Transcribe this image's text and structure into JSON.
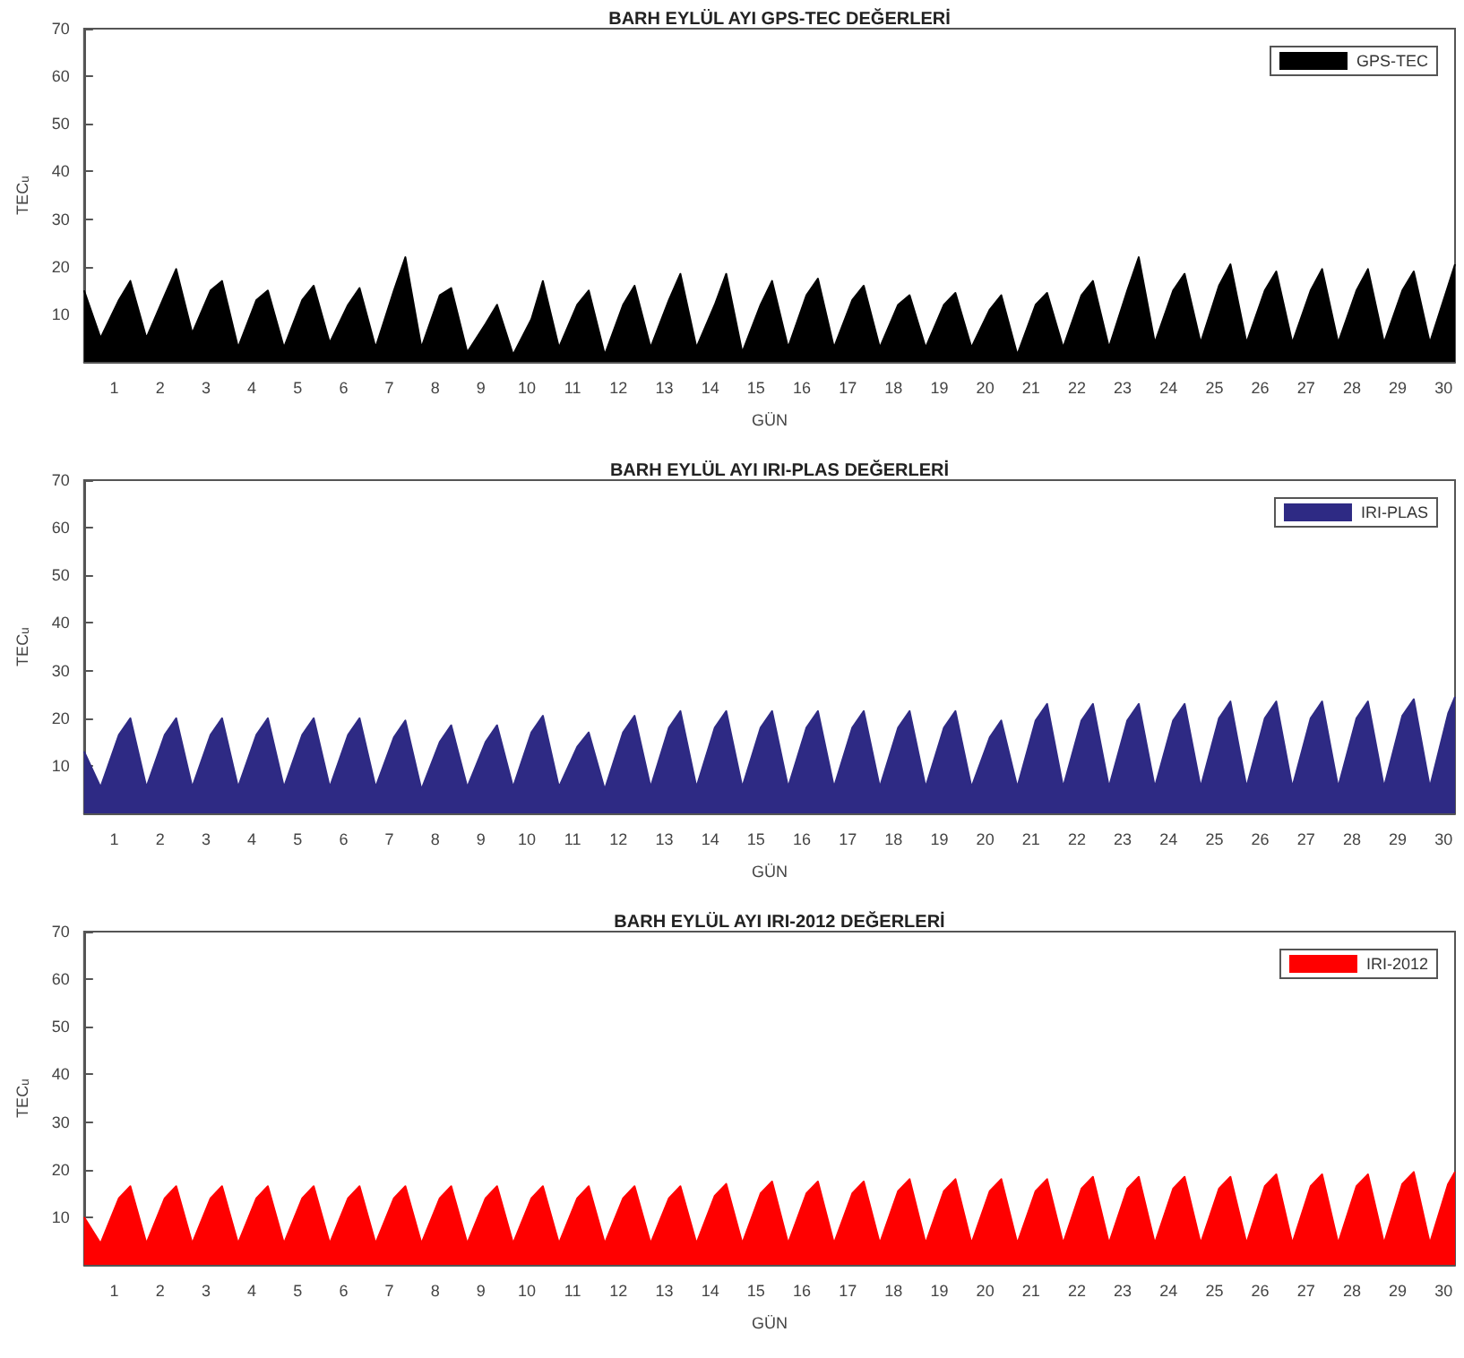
{
  "chart_data": [
    {
      "type": "area",
      "title": "BARH EYLÜL AYI GPS-TEC DEĞERLERİ",
      "xlabel": "GÜN",
      "ylabel": "TEC$_{u}$",
      "legend": "top right",
      "grid": false,
      "marker": "none",
      "xlim": [
        0.34,
        30.25
      ],
      "xticks": [
        1,
        2,
        3,
        4,
        5,
        6,
        7,
        8,
        9,
        10,
        11,
        12,
        13,
        14,
        15,
        16,
        17,
        18,
        19,
        20,
        21,
        22,
        23,
        24,
        25,
        26,
        27,
        28,
        29,
        30
      ],
      "ylim": [
        0,
        70
      ],
      "yticks": [
        10,
        20,
        30,
        40,
        50,
        60,
        70
      ],
      "x": [
        0.34,
        0.7,
        1.1,
        1.35,
        1.7,
        2.1,
        2.35,
        2.7,
        3.1,
        3.35,
        3.7,
        4.1,
        4.35,
        4.7,
        5.1,
        5.35,
        5.7,
        6.1,
        6.35,
        6.7,
        7.1,
        7.35,
        7.7,
        8.1,
        8.35,
        8.7,
        9.1,
        9.35,
        9.7,
        10.1,
        10.35,
        10.7,
        11.1,
        11.35,
        11.7,
        12.1,
        12.35,
        12.7,
        13.1,
        13.35,
        13.7,
        14.1,
        14.35,
        14.7,
        15.1,
        15.35,
        15.7,
        16.1,
        16.35,
        16.7,
        17.1,
        17.35,
        17.7,
        18.1,
        18.35,
        18.7,
        19.1,
        19.35,
        19.7,
        20.1,
        20.35,
        20.7,
        21.1,
        21.35,
        21.7,
        22.1,
        22.35,
        22.7,
        23.1,
        23.35,
        23.7,
        24.1,
        24.35,
        24.7,
        25.1,
        25.35,
        25.7,
        26.1,
        26.35,
        26.7,
        27.1,
        27.35,
        27.7,
        28.1,
        28.35,
        28.7,
        29.1,
        29.35,
        29.7,
        30.1,
        30.25
      ],
      "series": [
        {
          "name": "GPS-TEC",
          "color": "#000000",
          "values": [
            15,
            5,
            13,
            17,
            5,
            14,
            19.5,
            6,
            15,
            17,
            3,
            13,
            15,
            3,
            13,
            16,
            4,
            12,
            15.5,
            3,
            15,
            22,
            3,
            14,
            15.5,
            2,
            8,
            12,
            1.5,
            9,
            17,
            3,
            12,
            15,
            1.5,
            12,
            16,
            3,
            13,
            18.5,
            3,
            12,
            18.5,
            2,
            12,
            17,
            3,
            14,
            17.5,
            3,
            13,
            16,
            3,
            12,
            14,
            3,
            12,
            14.5,
            3,
            11,
            14,
            1.5,
            12,
            14.5,
            3,
            14,
            17,
            3,
            15,
            22,
            4,
            15,
            18.5,
            4,
            16,
            20.5,
            4,
            15,
            19,
            4,
            15,
            19.5,
            4,
            15,
            19.5,
            4,
            15,
            19,
            4,
            16,
            20.5
          ]
        }
      ]
    },
    {
      "type": "area",
      "title": "BARH EYLÜL AYI IRI-PLAS DEĞERLERİ",
      "xlabel": "GÜN",
      "ylabel": "TEC$_{u}$",
      "legend": "top right",
      "grid": false,
      "marker": "none",
      "xlim": [
        0.34,
        30.25
      ],
      "xticks": [
        1,
        2,
        3,
        4,
        5,
        6,
        7,
        8,
        9,
        10,
        11,
        12,
        13,
        14,
        15,
        16,
        17,
        18,
        19,
        20,
        21,
        22,
        23,
        24,
        25,
        26,
        27,
        28,
        29,
        30
      ],
      "ylim": [
        0,
        70
      ],
      "yticks": [
        10,
        20,
        30,
        40,
        50,
        60,
        70
      ],
      "x": [
        0.34,
        0.7,
        1.1,
        1.35,
        1.7,
        2.1,
        2.35,
        2.7,
        3.1,
        3.35,
        3.7,
        4.1,
        4.35,
        4.7,
        5.1,
        5.35,
        5.7,
        6.1,
        6.35,
        6.7,
        7.1,
        7.35,
        7.7,
        8.1,
        8.35,
        8.7,
        9.1,
        9.35,
        9.7,
        10.1,
        10.35,
        10.7,
        11.1,
        11.35,
        11.7,
        12.1,
        12.35,
        12.7,
        13.1,
        13.35,
        13.7,
        14.1,
        14.35,
        14.7,
        15.1,
        15.35,
        15.7,
        16.1,
        16.35,
        16.7,
        17.1,
        17.35,
        17.7,
        18.1,
        18.35,
        18.7,
        19.1,
        19.35,
        19.7,
        20.1,
        20.35,
        20.7,
        21.1,
        21.35,
        21.7,
        22.1,
        22.35,
        22.7,
        23.1,
        23.35,
        23.7,
        24.1,
        24.35,
        24.7,
        25.1,
        25.35,
        25.7,
        26.1,
        26.35,
        26.7,
        27.1,
        27.35,
        27.7,
        28.1,
        28.35,
        28.7,
        29.1,
        29.35,
        29.7,
        30.1,
        30.25
      ],
      "series": [
        {
          "name": "IRI-PLAS",
          "color": "#2e2a84",
          "values": [
            13,
            5.5,
            16.5,
            20,
            5.5,
            16.5,
            20,
            5.5,
            16.5,
            20,
            5.5,
            16.5,
            20,
            5.5,
            16.5,
            20,
            5.5,
            16.5,
            20,
            5.5,
            16,
            19.5,
            5,
            15,
            18.5,
            5.5,
            15,
            18.5,
            5.5,
            17,
            20.5,
            5.5,
            14,
            17,
            5,
            17,
            20.5,
            5.5,
            18,
            21.5,
            5.5,
            18,
            21.5,
            5.5,
            18,
            21.5,
            5.5,
            18,
            21.5,
            5.5,
            18,
            21.5,
            5.5,
            18,
            21.5,
            5.5,
            18,
            21.5,
            5.5,
            16,
            19.5,
            5.5,
            19.5,
            23,
            5.5,
            19.5,
            23,
            5.5,
            19.5,
            23,
            5.5,
            19.5,
            23,
            5.5,
            20,
            23.5,
            5.5,
            20,
            23.5,
            5.5,
            20,
            23.5,
            5.5,
            20,
            23.5,
            5.5,
            20.5,
            24,
            5.5,
            21,
            24.5
          ]
        }
      ]
    },
    {
      "type": "area",
      "title": "BARH EYLÜL AYI IRI-2012 DEĞERLERİ",
      "xlabel": "GÜN",
      "ylabel": "TEC$_{u}$",
      "legend": "top right",
      "grid": false,
      "marker": "none",
      "xlim": [
        0.34,
        30.25
      ],
      "xticks": [
        1,
        2,
        3,
        4,
        5,
        6,
        7,
        8,
        9,
        10,
        11,
        12,
        13,
        14,
        15,
        16,
        17,
        18,
        19,
        20,
        21,
        22,
        23,
        24,
        25,
        26,
        27,
        28,
        29,
        30
      ],
      "ylim": [
        0,
        70
      ],
      "yticks": [
        10,
        20,
        30,
        40,
        50,
        60,
        70
      ],
      "x": [
        0.34,
        0.7,
        1.1,
        1.35,
        1.7,
        2.1,
        2.35,
        2.7,
        3.1,
        3.35,
        3.7,
        4.1,
        4.35,
        4.7,
        5.1,
        5.35,
        5.7,
        6.1,
        6.35,
        6.7,
        7.1,
        7.35,
        7.7,
        8.1,
        8.35,
        8.7,
        9.1,
        9.35,
        9.7,
        10.1,
        10.35,
        10.7,
        11.1,
        11.35,
        11.7,
        12.1,
        12.35,
        12.7,
        13.1,
        13.35,
        13.7,
        14.1,
        14.35,
        14.7,
        15.1,
        15.35,
        15.7,
        16.1,
        16.35,
        16.7,
        17.1,
        17.35,
        17.7,
        18.1,
        18.35,
        18.7,
        19.1,
        19.35,
        19.7,
        20.1,
        20.35,
        20.7,
        21.1,
        21.35,
        21.7,
        22.1,
        22.35,
        22.7,
        23.1,
        23.35,
        23.7,
        24.1,
        24.35,
        24.7,
        25.1,
        25.35,
        25.7,
        26.1,
        26.35,
        26.7,
        27.1,
        27.35,
        27.7,
        28.1,
        28.35,
        28.7,
        29.1,
        29.35,
        29.7,
        30.1,
        30.25
      ],
      "series": [
        {
          "name": "IRI-2012",
          "color": "#ff0000",
          "values": [
            10,
            4.5,
            14,
            16.5,
            4.5,
            14,
            16.5,
            4.5,
            14,
            16.5,
            4.5,
            14,
            16.5,
            4.5,
            14,
            16.5,
            4.5,
            14,
            16.5,
            4.5,
            14,
            16.5,
            4.5,
            14,
            16.5,
            4.5,
            14,
            16.5,
            4.5,
            14,
            16.5,
            4.5,
            14,
            16.5,
            4.5,
            14,
            16.5,
            4.5,
            14,
            16.5,
            4.5,
            14.5,
            17,
            4.5,
            15,
            17.5,
            4.5,
            15,
            17.5,
            4.5,
            15,
            17.5,
            4.5,
            15.5,
            18,
            4.5,
            15.5,
            18,
            4.5,
            15.5,
            18,
            4.5,
            15.5,
            18,
            4.5,
            16,
            18.5,
            4.5,
            16,
            18.5,
            4.5,
            16,
            18.5,
            4.5,
            16,
            18.5,
            4.5,
            16.5,
            19,
            4.5,
            16.5,
            19,
            4.5,
            16.5,
            19,
            4.5,
            17,
            19.5,
            4.5,
            17,
            19.5
          ]
        }
      ]
    }
  ]
}
